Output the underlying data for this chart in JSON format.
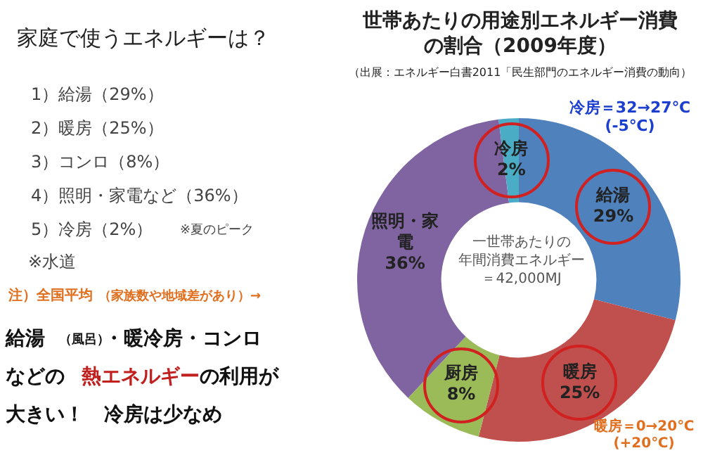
{
  "chart_data": {
    "type": "donut",
    "title": "世帯あたりの用途別エネルギー消費の割合（2009年度）",
    "subtitle": "（出展：エネルギー白書2011「民生部門のエネルギー消費の動向）",
    "categories": [
      "給湯",
      "暖房",
      "厨房",
      "照明・家電",
      "冷房"
    ],
    "values": [
      29,
      25,
      8,
      36,
      2
    ],
    "colors": [
      "#4f81bd",
      "#c0504d",
      "#9bbb59",
      "#8064a2",
      "#4bacc6"
    ],
    "value_labels": [
      "29%",
      "25%",
      "8%",
      "36%",
      "2%"
    ],
    "legend": false,
    "annotations": [
      "家庭で使うエネルギーは？",
      "1）給湯（29%）",
      "2）暖房（25%）",
      "3）コンロ（8%）",
      "4）照明・家電など（36%）",
      "5）冷房（2%）",
      "※夏のピーク",
      "※水道",
      "注）全国平均",
      "（家族数や地域差があり）→",
      "給湯",
      "（風呂）",
      "・暖冷房・コンロ",
      "などの",
      "熱エネルギー",
      "の利用が",
      "大きい！　冷房は少なめ",
      "一世帯あたりの",
      "年間消費エネルギー",
      "＝42,000MJ",
      "冷房＝32→27℃\n(-5℃)",
      "暖房＝0→20℃\n(+20℃)"
    ]
  }
}
